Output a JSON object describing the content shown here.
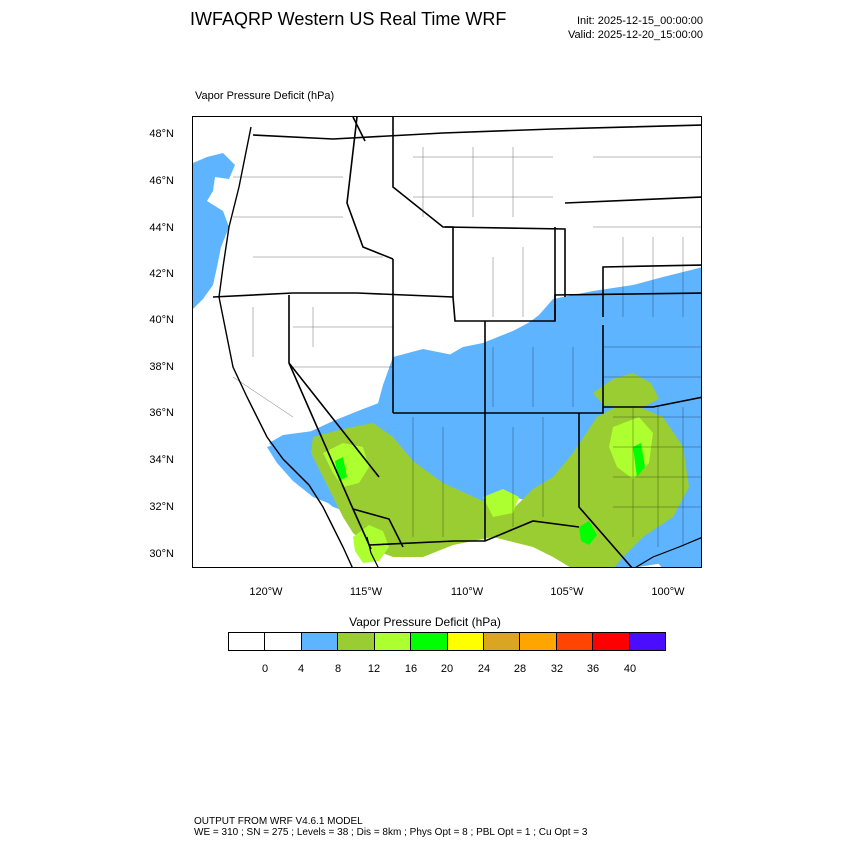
{
  "header": {
    "title": "IWFAQRP Western US Real Time WRF",
    "init": "Init: 2025-12-15_00:00:00",
    "valid": "Valid: 2025-12-20_15:00:00"
  },
  "map": {
    "field_label": "Vapor Pressure Deficit   (hPa)",
    "projection_extent": {
      "lon": [
        -123.6,
        -98.3
      ],
      "lat": [
        29.4,
        48.8
      ]
    },
    "lat_labels": [
      "48°N",
      "46°N",
      "44°N",
      "42°N",
      "40°N",
      "38°N",
      "36°N",
      "34°N",
      "32°N",
      "30°N"
    ],
    "lon_labels": [
      "120°W",
      "115°W",
      "110°W",
      "105°W",
      "100°W"
    ]
  },
  "colorbar": {
    "title": "Vapor Pressure Deficit  (hPa)",
    "colors": [
      "#ffffff",
      "#ffffff",
      "#5fb4ff",
      "#9acd32",
      "#adff2f",
      "#00ff00",
      "#ffff00",
      "#daa520",
      "#ffa500",
      "#ff4500",
      "#ff0000",
      "#4b0dff"
    ],
    "tick_labels": [
      "0",
      "4",
      "8",
      "12",
      "16",
      "20",
      "24",
      "28",
      "32",
      "36",
      "40"
    ]
  },
  "footer": {
    "line1": "OUTPUT FROM WRF V4.6.1 MODEL",
    "line2": "WE = 310 ; SN = 275 ; Levels = 38 ; Dis = 8km ; Phys Opt = 8 ; PBL Opt = 1 ; Cu Opt = 3"
  }
}
